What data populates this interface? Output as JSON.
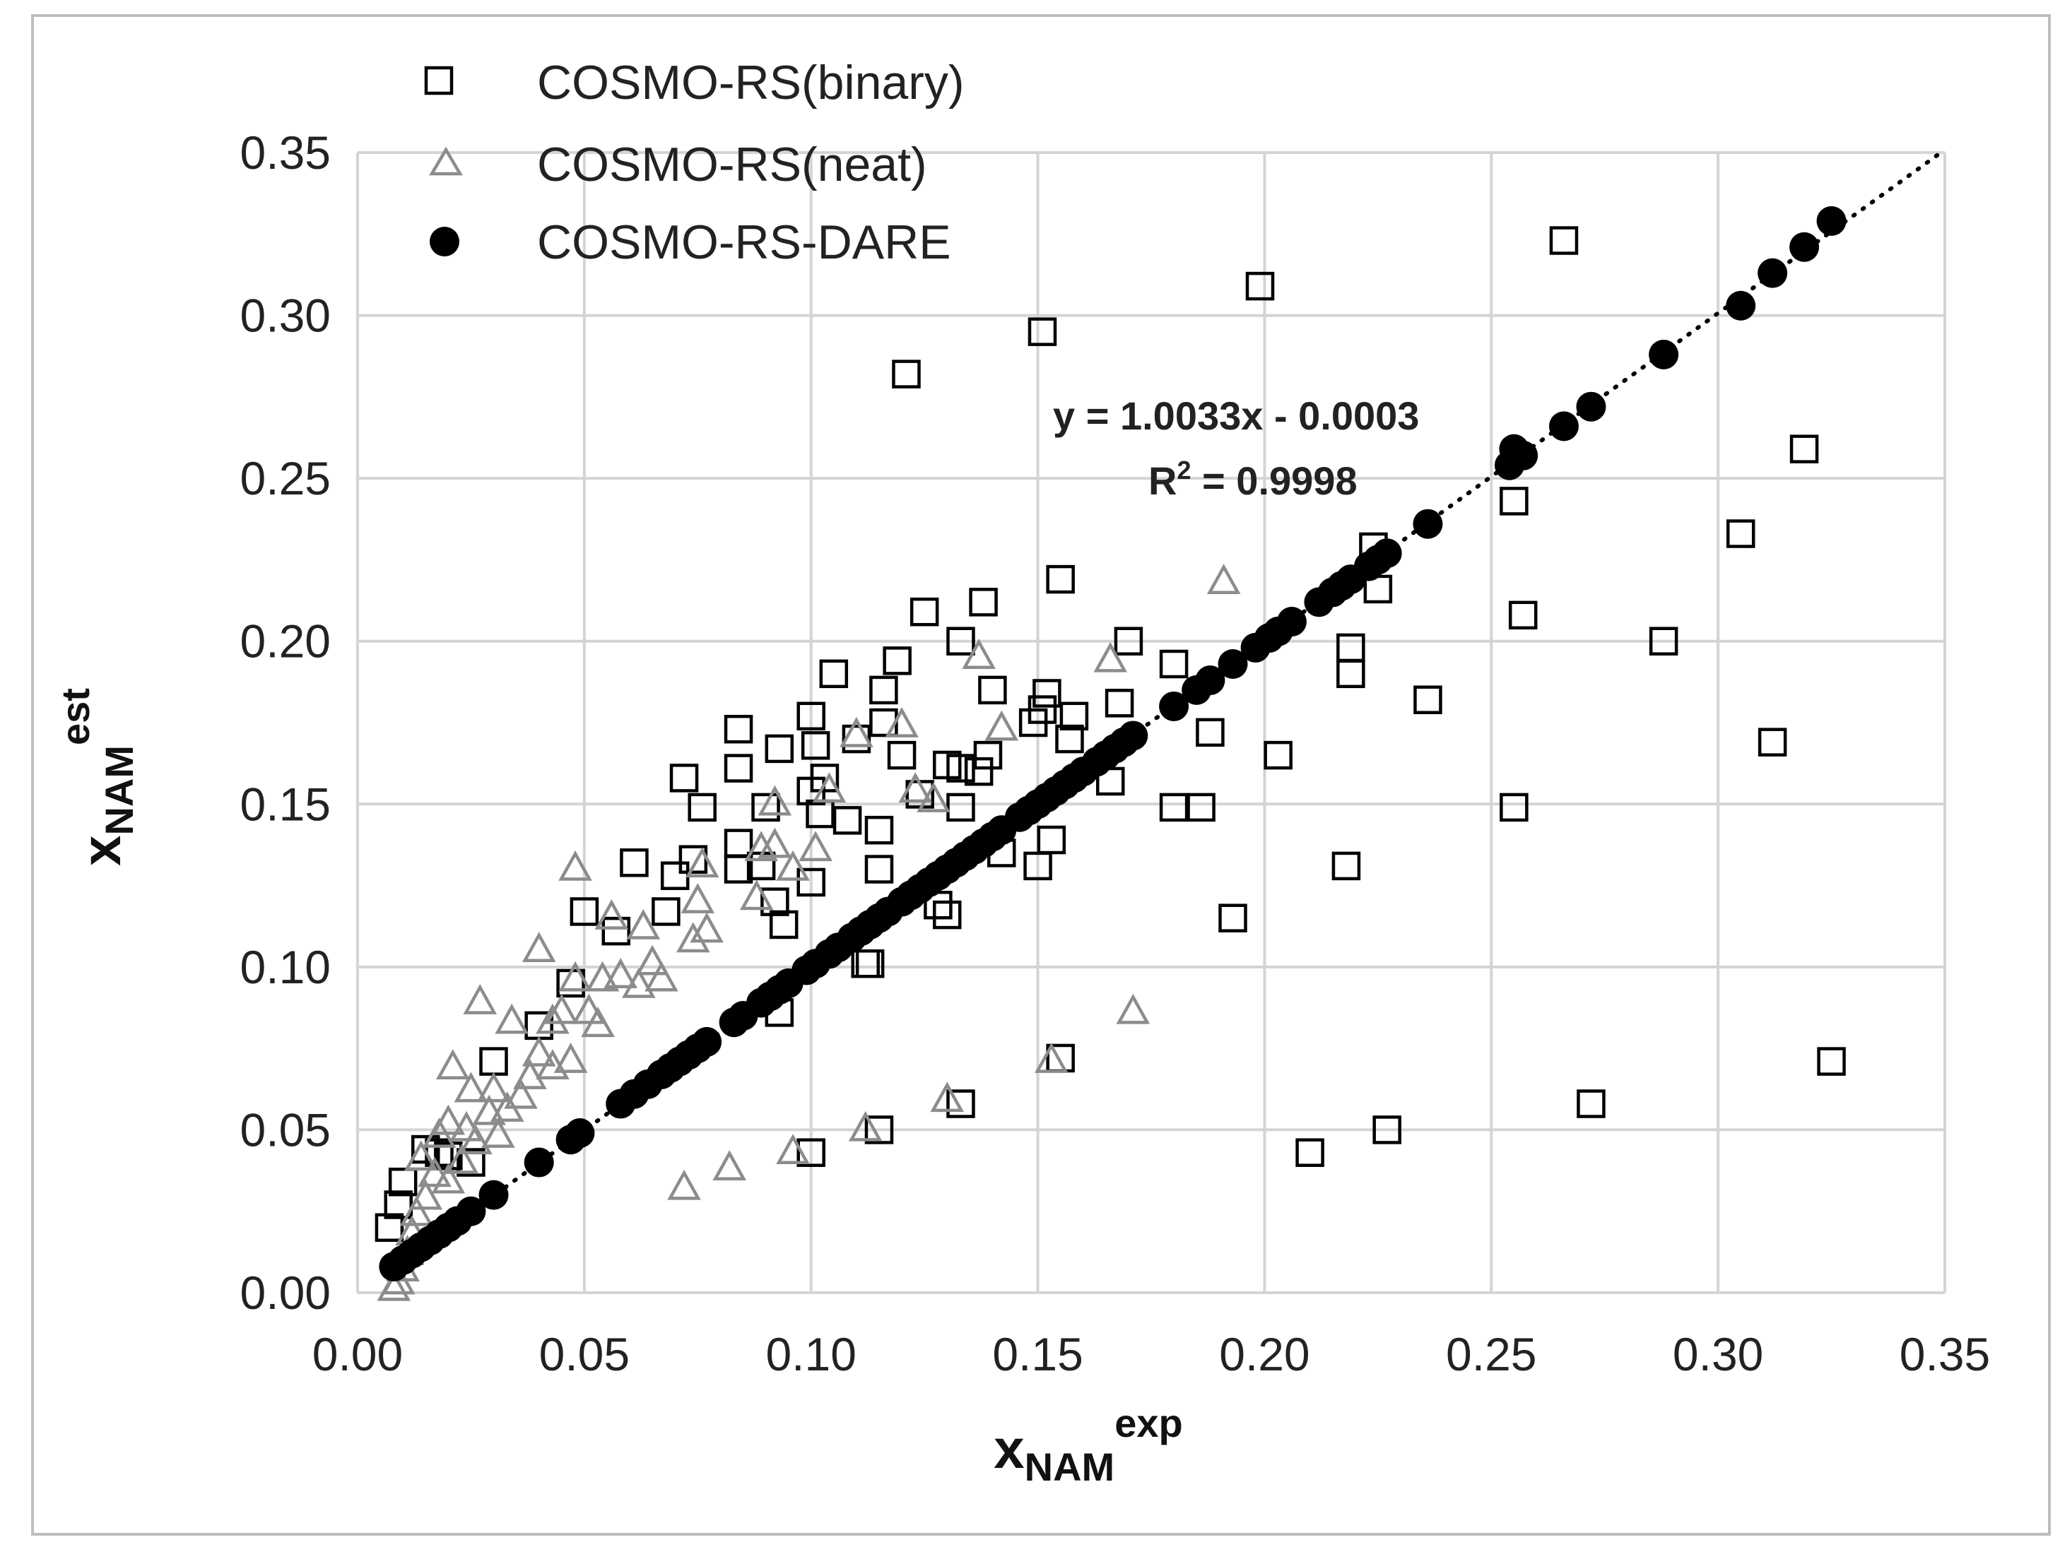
{
  "chart_data": {
    "type": "scatter",
    "xlabel": {
      "main": "x",
      "sub": "NAM",
      "sup": "exp"
    },
    "ylabel": {
      "main": "x",
      "sub": "NAM",
      "sup": "est"
    },
    "xlim": [
      0,
      0.35
    ],
    "ylim": [
      0,
      0.35
    ],
    "xticks": [
      "0.00",
      "0.05",
      "0.10",
      "0.15",
      "0.20",
      "0.25",
      "0.30",
      "0.35"
    ],
    "yticks": [
      "0.00",
      "0.05",
      "0.10",
      "0.15",
      "0.20",
      "0.25",
      "0.30",
      "0.35"
    ],
    "grid": true,
    "legend_position": "top-left",
    "trendline": {
      "series": "COSMO-RS-DARE",
      "equation": "y = 1.0033x - 0.0003",
      "r2_prefix": "R",
      "r2_sup": "2",
      "r2_rest": " = 0.9998",
      "slope": 1.0033,
      "intercept": -0.0003,
      "style": "dotted"
    },
    "series": [
      {
        "name": "COSMO-RS(binary)",
        "marker": "square-open",
        "color": "#000000",
        "points": [
          [
            0.325,
            0.071
          ],
          [
            0.319,
            0.259
          ],
          [
            0.312,
            0.169
          ],
          [
            0.305,
            0.233
          ],
          [
            0.288,
            0.2
          ],
          [
            0.272,
            0.058
          ],
          [
            0.266,
            0.323
          ],
          [
            0.257,
            0.208
          ],
          [
            0.255,
            0.243
          ],
          [
            0.255,
            0.149
          ],
          [
            0.236,
            0.182
          ],
          [
            0.227,
            0.05
          ],
          [
            0.225,
            0.216
          ],
          [
            0.224,
            0.229
          ],
          [
            0.219,
            0.19
          ],
          [
            0.219,
            0.198
          ],
          [
            0.218,
            0.131
          ],
          [
            0.21,
            0.043
          ],
          [
            0.203,
            0.165
          ],
          [
            0.199,
            0.309
          ],
          [
            0.193,
            0.115
          ],
          [
            0.188,
            0.172
          ],
          [
            0.186,
            0.149
          ],
          [
            0.18,
            0.193
          ],
          [
            0.18,
            0.149
          ],
          [
            0.17,
            0.2
          ],
          [
            0.168,
            0.181
          ],
          [
            0.166,
            0.157
          ],
          [
            0.158,
            0.177
          ],
          [
            0.157,
            0.17
          ],
          [
            0.155,
            0.219
          ],
          [
            0.155,
            0.072
          ],
          [
            0.153,
            0.139
          ],
          [
            0.152,
            0.184
          ],
          [
            0.151,
            0.179
          ],
          [
            0.151,
            0.295
          ],
          [
            0.15,
            0.131
          ],
          [
            0.149,
            0.175
          ],
          [
            0.142,
            0.135
          ],
          [
            0.14,
            0.185
          ],
          [
            0.139,
            0.165
          ],
          [
            0.138,
            0.212
          ],
          [
            0.137,
            0.16
          ],
          [
            0.133,
            0.2
          ],
          [
            0.133,
            0.161
          ],
          [
            0.133,
            0.149
          ],
          [
            0.133,
            0.058
          ],
          [
            0.13,
            0.162
          ],
          [
            0.13,
            0.116
          ],
          [
            0.128,
            0.119
          ],
          [
            0.125,
            0.209
          ],
          [
            0.124,
            0.153
          ],
          [
            0.121,
            0.282
          ],
          [
            0.12,
            0.165
          ],
          [
            0.119,
            0.194
          ],
          [
            0.116,
            0.185
          ],
          [
            0.116,
            0.175
          ],
          [
            0.115,
            0.142
          ],
          [
            0.115,
            0.13
          ],
          [
            0.115,
            0.05
          ],
          [
            0.113,
            0.101
          ],
          [
            0.112,
            0.101
          ],
          [
            0.11,
            0.17
          ],
          [
            0.108,
            0.145
          ],
          [
            0.105,
            0.19
          ],
          [
            0.103,
            0.158
          ],
          [
            0.102,
            0.147
          ],
          [
            0.101,
            0.168
          ],
          [
            0.1,
            0.177
          ],
          [
            0.1,
            0.154
          ],
          [
            0.1,
            0.126
          ],
          [
            0.1,
            0.043
          ],
          [
            0.094,
            0.113
          ],
          [
            0.093,
            0.167
          ],
          [
            0.093,
            0.086
          ],
          [
            0.092,
            0.12
          ],
          [
            0.09,
            0.149
          ],
          [
            0.089,
            0.131
          ],
          [
            0.084,
            0.173
          ],
          [
            0.084,
            0.161
          ],
          [
            0.084,
            0.138
          ],
          [
            0.084,
            0.13
          ],
          [
            0.076,
            0.149
          ],
          [
            0.074,
            0.133
          ],
          [
            0.072,
            0.158
          ],
          [
            0.07,
            0.128
          ],
          [
            0.068,
            0.117
          ],
          [
            0.061,
            0.132
          ],
          [
            0.057,
            0.111
          ],
          [
            0.05,
            0.117
          ],
          [
            0.047,
            0.095
          ],
          [
            0.04,
            0.082
          ],
          [
            0.03,
            0.071
          ],
          [
            0.025,
            0.04
          ],
          [
            0.02,
            0.042
          ],
          [
            0.018,
            0.043
          ],
          [
            0.015,
            0.044
          ],
          [
            0.01,
            0.034
          ],
          [
            0.009,
            0.027
          ],
          [
            0.007,
            0.02
          ]
        ]
      },
      {
        "name": "COSMO-RS(neat)",
        "marker": "triangle-open",
        "color": "#8c8c8c",
        "points": [
          [
            0.191,
            0.218
          ],
          [
            0.171,
            0.086
          ],
          [
            0.166,
            0.194
          ],
          [
            0.153,
            0.071
          ],
          [
            0.142,
            0.173
          ],
          [
            0.137,
            0.195
          ],
          [
            0.13,
            0.059
          ],
          [
            0.127,
            0.151
          ],
          [
            0.123,
            0.154
          ],
          [
            0.12,
            0.174
          ],
          [
            0.112,
            0.05
          ],
          [
            0.11,
            0.171
          ],
          [
            0.104,
            0.154
          ],
          [
            0.101,
            0.136
          ],
          [
            0.096,
            0.13
          ],
          [
            0.096,
            0.043
          ],
          [
            0.092,
            0.15
          ],
          [
            0.092,
            0.137
          ],
          [
            0.089,
            0.136
          ],
          [
            0.088,
            0.121
          ],
          [
            0.082,
            0.038
          ],
          [
            0.077,
            0.111
          ],
          [
            0.076,
            0.131
          ],
          [
            0.075,
            0.12
          ],
          [
            0.074,
            0.108
          ],
          [
            0.072,
            0.032
          ],
          [
            0.067,
            0.096
          ],
          [
            0.065,
            0.101
          ],
          [
            0.063,
            0.112
          ],
          [
            0.062,
            0.094
          ],
          [
            0.058,
            0.097
          ],
          [
            0.056,
            0.115
          ],
          [
            0.054,
            0.096
          ],
          [
            0.053,
            0.082
          ],
          [
            0.051,
            0.086
          ],
          [
            0.048,
            0.13
          ],
          [
            0.048,
            0.096
          ],
          [
            0.047,
            0.071
          ],
          [
            0.045,
            0.086
          ],
          [
            0.043,
            0.083
          ],
          [
            0.043,
            0.069
          ],
          [
            0.04,
            0.105
          ],
          [
            0.04,
            0.073
          ],
          [
            0.038,
            0.066
          ],
          [
            0.036,
            0.06
          ],
          [
            0.034,
            0.083
          ],
          [
            0.033,
            0.056
          ],
          [
            0.031,
            0.048
          ],
          [
            0.03,
            0.062
          ],
          [
            0.029,
            0.055
          ],
          [
            0.027,
            0.089
          ],
          [
            0.026,
            0.046
          ],
          [
            0.025,
            0.062
          ],
          [
            0.024,
            0.05
          ],
          [
            0.023,
            0.04
          ],
          [
            0.021,
            0.069
          ],
          [
            0.02,
            0.052
          ],
          [
            0.02,
            0.034
          ],
          [
            0.018,
            0.048
          ],
          [
            0.017,
            0.036
          ],
          [
            0.015,
            0.029
          ],
          [
            0.014,
            0.041
          ],
          [
            0.013,
            0.024
          ],
          [
            0.012,
            0.018
          ],
          [
            0.011,
            0.012
          ],
          [
            0.01,
            0.007
          ],
          [
            0.009,
            0.003
          ],
          [
            0.008,
            0.001
          ]
        ]
      },
      {
        "name": "COSMO-RS-DARE",
        "marker": "circle-filled",
        "color": "#000000",
        "points": [
          [
            0.008,
            0.008
          ],
          [
            0.01,
            0.01
          ],
          [
            0.012,
            0.012
          ],
          [
            0.014,
            0.014
          ],
          [
            0.016,
            0.016
          ],
          [
            0.018,
            0.018
          ],
          [
            0.02,
            0.02
          ],
          [
            0.022,
            0.022
          ],
          [
            0.025,
            0.025
          ],
          [
            0.03,
            0.03
          ],
          [
            0.04,
            0.04
          ],
          [
            0.047,
            0.047
          ],
          [
            0.049,
            0.049
          ],
          [
            0.058,
            0.058
          ],
          [
            0.061,
            0.061
          ],
          [
            0.064,
            0.064
          ],
          [
            0.067,
            0.067
          ],
          [
            0.069,
            0.069
          ],
          [
            0.071,
            0.071
          ],
          [
            0.073,
            0.073
          ],
          [
            0.075,
            0.075
          ],
          [
            0.077,
            0.077
          ],
          [
            0.083,
            0.083
          ],
          [
            0.085,
            0.085
          ],
          [
            0.089,
            0.089
          ],
          [
            0.091,
            0.091
          ],
          [
            0.093,
            0.093
          ],
          [
            0.095,
            0.095
          ],
          [
            0.099,
            0.099
          ],
          [
            0.101,
            0.101
          ],
          [
            0.104,
            0.104
          ],
          [
            0.106,
            0.106
          ],
          [
            0.109,
            0.109
          ],
          [
            0.111,
            0.111
          ],
          [
            0.113,
            0.113
          ],
          [
            0.115,
            0.115
          ],
          [
            0.117,
            0.117
          ],
          [
            0.12,
            0.12
          ],
          [
            0.122,
            0.122
          ],
          [
            0.124,
            0.124
          ],
          [
            0.126,
            0.126
          ],
          [
            0.128,
            0.128
          ],
          [
            0.13,
            0.13
          ],
          [
            0.132,
            0.132
          ],
          [
            0.134,
            0.134
          ],
          [
            0.136,
            0.136
          ],
          [
            0.138,
            0.138
          ],
          [
            0.14,
            0.14
          ],
          [
            0.142,
            0.142
          ],
          [
            0.146,
            0.146
          ],
          [
            0.148,
            0.148
          ],
          [
            0.15,
            0.15
          ],
          [
            0.152,
            0.152
          ],
          [
            0.154,
            0.154
          ],
          [
            0.156,
            0.156
          ],
          [
            0.158,
            0.158
          ],
          [
            0.16,
            0.16
          ],
          [
            0.163,
            0.163
          ],
          [
            0.165,
            0.165
          ],
          [
            0.167,
            0.167
          ],
          [
            0.169,
            0.169
          ],
          [
            0.171,
            0.171
          ],
          [
            0.18,
            0.18
          ],
          [
            0.185,
            0.185
          ],
          [
            0.188,
            0.188
          ],
          [
            0.193,
            0.193
          ],
          [
            0.198,
            0.198
          ],
          [
            0.201,
            0.201
          ],
          [
            0.203,
            0.203
          ],
          [
            0.206,
            0.206
          ],
          [
            0.212,
            0.212
          ],
          [
            0.215,
            0.215
          ],
          [
            0.217,
            0.217
          ],
          [
            0.219,
            0.219
          ],
          [
            0.223,
            0.223
          ],
          [
            0.225,
            0.225
          ],
          [
            0.227,
            0.227
          ],
          [
            0.236,
            0.236
          ],
          [
            0.254,
            0.254
          ],
          [
            0.255,
            0.259
          ],
          [
            0.257,
            0.257
          ],
          [
            0.266,
            0.266
          ],
          [
            0.272,
            0.272
          ],
          [
            0.288,
            0.288
          ],
          [
            0.305,
            0.303
          ],
          [
            0.312,
            0.313
          ],
          [
            0.319,
            0.321
          ],
          [
            0.325,
            0.329
          ]
        ]
      }
    ]
  }
}
